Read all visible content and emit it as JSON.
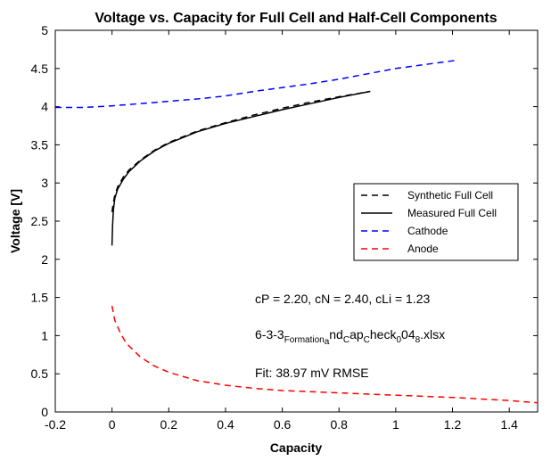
{
  "chart_data": {
    "type": "line",
    "title": "Voltage vs. Capacity for Full Cell and Half-Cell Components",
    "xlabel": "Capacity",
    "ylabel": "Voltage [V]",
    "xlim": [
      -0.2,
      1.5
    ],
    "ylim": [
      0,
      5
    ],
    "x_ticks": [
      "-0.2",
      "0",
      "0.2",
      "0.4",
      "0.6",
      "0.8",
      "1",
      "1.2",
      "1.4"
    ],
    "y_ticks": [
      "0",
      "0.5",
      "1",
      "1.5",
      "2",
      "2.5",
      "3",
      "3.5",
      "4",
      "4.5",
      "5"
    ],
    "grid": false,
    "legend_position": "right",
    "series": [
      {
        "name": "Synthetic Full Cell",
        "color": "#000000",
        "style": "dashed",
        "x": [
          0.0,
          0.005,
          0.01,
          0.02,
          0.04,
          0.06,
          0.1,
          0.15,
          0.2,
          0.3,
          0.4,
          0.5,
          0.6,
          0.7,
          0.8,
          0.91
        ],
        "y": [
          2.62,
          2.75,
          2.84,
          2.95,
          3.08,
          3.17,
          3.3,
          3.43,
          3.53,
          3.68,
          3.79,
          3.89,
          3.98,
          4.06,
          4.13,
          4.2
        ]
      },
      {
        "name": "Measured Full Cell",
        "color": "#000000",
        "style": "solid",
        "x": [
          0.0,
          0.002,
          0.005,
          0.01,
          0.02,
          0.04,
          0.06,
          0.1,
          0.15,
          0.2,
          0.3,
          0.4,
          0.5,
          0.6,
          0.7,
          0.8,
          0.91
        ],
        "y": [
          2.18,
          2.45,
          2.65,
          2.8,
          2.92,
          3.05,
          3.15,
          3.29,
          3.42,
          3.52,
          3.67,
          3.78,
          3.87,
          3.96,
          4.04,
          4.12,
          4.2
        ]
      },
      {
        "name": "Cathode",
        "color": "#0000ff",
        "style": "dashed",
        "x": [
          -0.2,
          -0.1,
          0.0,
          0.1,
          0.2,
          0.3,
          0.4,
          0.5,
          0.6,
          0.7,
          0.8,
          0.9,
          1.0,
          1.1,
          1.22
        ],
        "y": [
          3.99,
          3.99,
          4.01,
          4.04,
          4.07,
          4.1,
          4.14,
          4.2,
          4.25,
          4.3,
          4.36,
          4.43,
          4.5,
          4.55,
          4.61
        ]
      },
      {
        "name": "Anode",
        "color": "#ff0000",
        "style": "dashed",
        "x": [
          0.0,
          0.01,
          0.03,
          0.05,
          0.1,
          0.15,
          0.2,
          0.3,
          0.4,
          0.5,
          0.6,
          0.8,
          1.0,
          1.2,
          1.4,
          1.5
        ],
        "y": [
          1.39,
          1.2,
          1.03,
          0.9,
          0.72,
          0.6,
          0.52,
          0.41,
          0.35,
          0.31,
          0.28,
          0.25,
          0.22,
          0.19,
          0.15,
          0.12
        ]
      }
    ],
    "annotations": [
      "cP = 2.20, cN = 2.40, cLi = 1.23",
      "6-3-3",
      "Formation",
      "a",
      "nd",
      "C",
      "ap",
      "C",
      "heck",
      "0",
      "04",
      "8",
      ".xlsx",
      "Fit: 38.97 mV RMSE"
    ]
  }
}
